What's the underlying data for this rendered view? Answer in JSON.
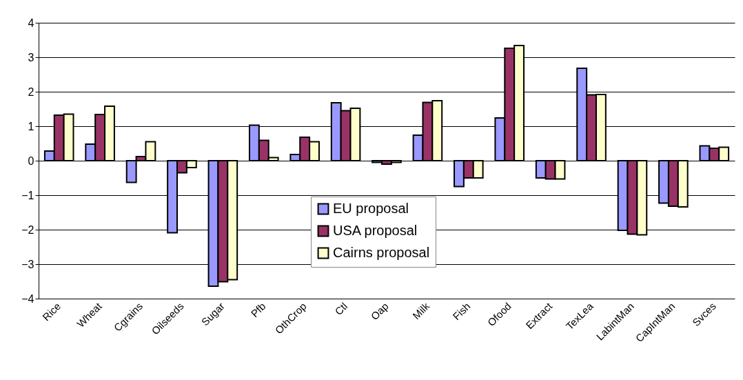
{
  "chart_data": {
    "type": "bar",
    "categories": [
      "Rice",
      "Wheat",
      "Cgrains",
      "Oilseeds",
      "Sugar",
      "Pfb",
      "OthCrop",
      "Ctl",
      "Oap",
      "Milk",
      "Fish",
      "Ofood",
      "Extract",
      "TexLea",
      "LabintMan",
      "CapIntMan",
      "Svces"
    ],
    "series": [
      {
        "name": "EU proposal",
        "color": "#9999ff",
        "values": [
          0.28,
          0.48,
          -0.63,
          -2.09,
          -3.64,
          1.03,
          0.18,
          1.68,
          -0.05,
          0.74,
          -0.75,
          1.24,
          -0.5,
          2.68,
          -2.02,
          -1.23,
          0.43
        ]
      },
      {
        "name": "USA proposal",
        "color": "#993366",
        "values": [
          1.32,
          1.34,
          0.12,
          -0.35,
          -3.51,
          0.59,
          0.68,
          1.45,
          -0.1,
          1.69,
          -0.5,
          3.26,
          -0.53,
          1.91,
          -2.13,
          -1.32,
          0.36
        ]
      },
      {
        "name": "Cairns proposal",
        "color": "#ffffcc",
        "values": [
          1.35,
          1.58,
          0.55,
          -0.2,
          -3.45,
          0.09,
          0.55,
          1.52,
          -0.05,
          1.74,
          -0.5,
          3.34,
          -0.53,
          1.92,
          -2.15,
          -1.34,
          0.39
        ]
      }
    ],
    "ylim": [
      -4,
      4
    ],
    "yticks": [
      -4,
      -3,
      -2,
      -1,
      0,
      1,
      2,
      3,
      4
    ],
    "grid": "y",
    "legend": "bottom"
  }
}
